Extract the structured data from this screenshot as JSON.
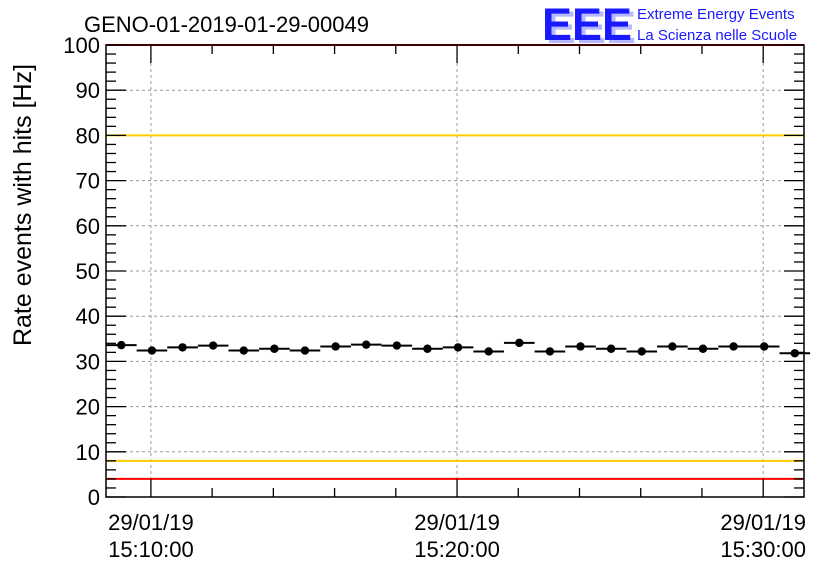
{
  "logo": {
    "text": "EEE",
    "line1": "Extreme Energy Events",
    "line2": "La Scienza nelle Scuole",
    "color": "#1a1aff"
  },
  "chart_data": {
    "type": "scatter",
    "title": "GENO-01-2019-01-29-00049",
    "ylabel": "Rate events with hits [Hz]",
    "xlabel": "",
    "ylim": [
      0,
      100
    ],
    "yticks": [
      0,
      10,
      20,
      30,
      40,
      50,
      60,
      70,
      80,
      90,
      100
    ],
    "xlim": [
      "29/01/19 15:08:32",
      "29/01/19 15:31:20"
    ],
    "xticks": [
      {
        "time": "15:10:00",
        "date": "29/01/19"
      },
      {
        "time": "15:20:00",
        "date": "29/01/19"
      },
      {
        "time": "15:30:00",
        "date": "29/01/19"
      }
    ],
    "grid": true,
    "bin_width_seconds": 60,
    "x": [
      "15:09:02",
      "15:10:02",
      "15:11:02",
      "15:12:02",
      "15:13:02",
      "15:14:02",
      "15:15:02",
      "15:16:02",
      "15:17:02",
      "15:18:02",
      "15:19:02",
      "15:20:02",
      "15:21:02",
      "15:22:02",
      "15:23:02",
      "15:24:02",
      "15:25:02",
      "15:26:02",
      "15:27:02",
      "15:28:02",
      "15:29:02",
      "15:30:02",
      "15:31:02"
    ],
    "series": [
      {
        "values": [
          33.6,
          32.4,
          33.1,
          33.5,
          32.4,
          32.8,
          32.4,
          33.3,
          33.7,
          33.5,
          32.8,
          33.1,
          32.2,
          34.1,
          32.2,
          33.3,
          32.8,
          32.2,
          33.3,
          32.8,
          33.3,
          33.3,
          31.8
        ]
      }
    ],
    "reference_lines": [
      {
        "y": 100,
        "color": "#ff0000"
      },
      {
        "y": 80,
        "color": "#ffcc00"
      },
      {
        "y": 8,
        "color": "#ffcc00"
      },
      {
        "y": 4,
        "color": "#ff0000"
      }
    ]
  }
}
